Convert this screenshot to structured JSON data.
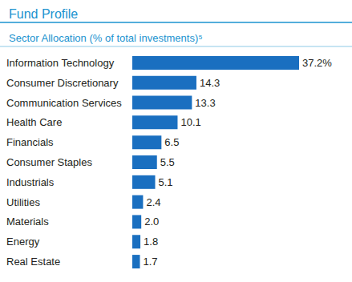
{
  "chart_data": {
    "type": "bar",
    "title": "Fund Profile",
    "subtitle": "Sector Allocation (% of total investments)⁵",
    "orientation": "horizontal",
    "categories": [
      "Information Technology",
      "Consumer Discretionary",
      "Communication Services",
      "Health Care",
      "Financials",
      "Consumer Staples",
      "Industrials",
      "Utilities",
      "Materials",
      "Energy",
      "Real Estate"
    ],
    "values": [
      37.2,
      14.3,
      13.3,
      10.1,
      6.5,
      5.5,
      5.1,
      2.4,
      2.0,
      1.8,
      1.7
    ],
    "value_labels": [
      "37.2%",
      "14.3",
      "13.3",
      "10.1",
      "6.5",
      "5.5",
      "5.1",
      "2.4",
      "2.0",
      "1.8",
      "1.7"
    ],
    "color": "#1a6fc0",
    "xlim": [
      0,
      37.2
    ],
    "grid": false,
    "data_labels": true,
    "tick_labels": "y"
  }
}
